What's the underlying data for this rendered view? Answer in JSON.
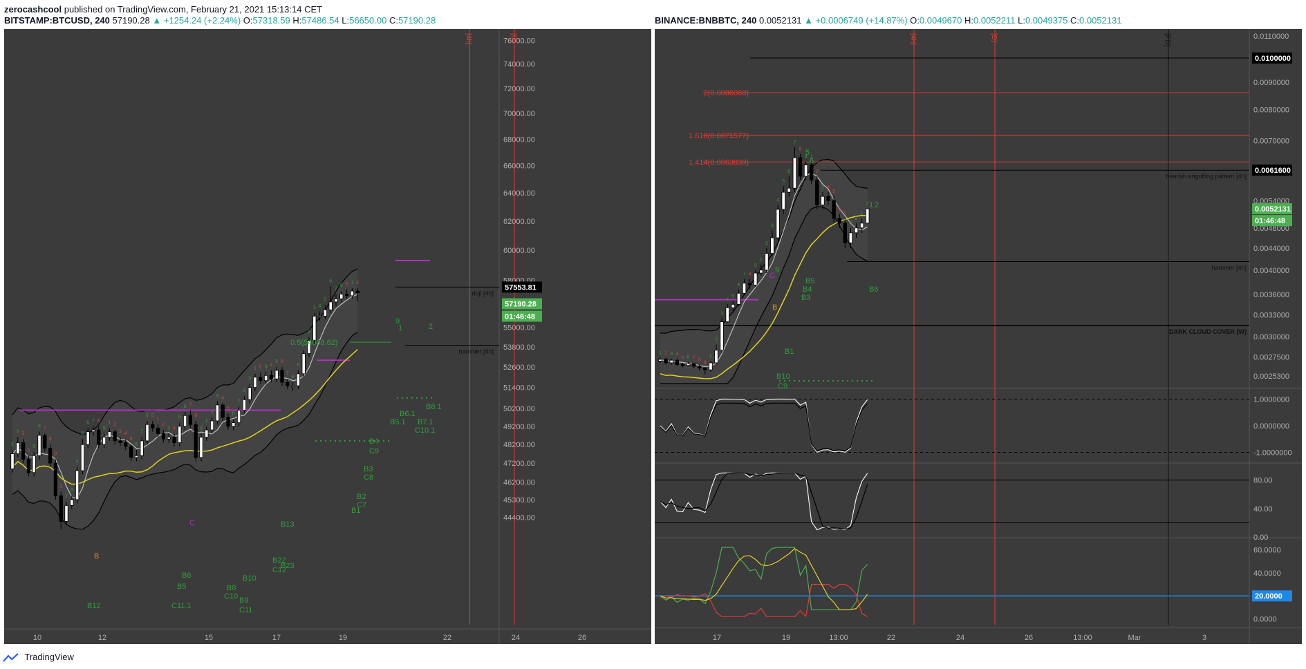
{
  "header": {
    "author": "zerocashcool",
    "published_text": "published on TradingView.com, February 21, 2021 15:13:14 CET"
  },
  "left_legend": {
    "symbol": "BITSTAMP:BTCUSD, 240",
    "last": "57190.28",
    "change": "▲ +1254.24 (+2.24%)",
    "o_label": "O:",
    "o": "57318.59",
    "h_label": "H:",
    "h": "57486.54",
    "l_label": "L:",
    "l": "56650.00",
    "c_label": "C:",
    "c": "57190.28"
  },
  "right_legend": {
    "symbol": "BINANCE:BNBBTC, 240",
    "last": "0.0052131",
    "change": "▲ +0.0006749 (+14.87%)",
    "o_label": "O:",
    "o": "0.0049670",
    "h_label": "H:",
    "h": "0.0052211",
    "l_label": "L:",
    "l": "0.0049375",
    "c_label": "C:",
    "c": "0.0052131"
  },
  "footer": {
    "brand": "TradingView"
  },
  "colors": {
    "pane_bg": "#3b3b3b",
    "up_candle": "#ffffff",
    "down_candle": "#000000",
    "bb_line": "#000000",
    "ma_fast": "#bdbdbd",
    "ma_slow": "#e3d21f",
    "td_green": "#2e9e3a",
    "td_red": "#d94040",
    "magenta": "#b030c0",
    "orange": "#e08a1e",
    "red_line": "#e03c31",
    "price_tag_green": "#4caf50",
    "adx_blue": "#1e88e5"
  },
  "chart_data": [
    {
      "type": "candlestick",
      "title": "BITSTAMP:BTCUSD, 240",
      "y_axis": [
        "76000.00",
        "74000.00",
        "72000.00",
        "70000.00",
        "68000.00",
        "66000.00",
        "64000.00",
        "62000.00",
        "60000.00",
        "58000.00",
        "55000.00",
        "53800.00",
        "52600.00",
        "51400.00",
        "50200.00",
        "49200.00",
        "48200.00",
        "47200.00",
        "46200.00",
        "45300.00",
        "44400.00"
      ],
      "x_axis": [
        "10",
        "12",
        "15",
        "17",
        "19",
        "22",
        "24",
        "26"
      ],
      "scale": "log",
      "ylim": [
        43600,
        76500
      ],
      "period_markers": [
        "[4h]",
        "[D]"
      ],
      "price_labels": {
        "level": "57553.81",
        "last": "57190.28",
        "countdown": "01:46:48"
      },
      "annotations": {
        "fib": "0.5(54088.62)",
        "doji": "doji [4h]",
        "hammer": "hammer [4h]"
      },
      "levels": {
        "doji_level": 57553.81,
        "hammer_level": 53900,
        "magenta_1": 50100,
        "magenta_2": 59300,
        "magenta_3": 53000,
        "fib_05": 54088.62
      },
      "td_labels": [
        "B",
        "C",
        "B13",
        "B10",
        "B8",
        "C10",
        "B9",
        "C11",
        "B6",
        "B5",
        "C11.1",
        "B12",
        "B4",
        "C9",
        "B3",
        "C8",
        "B2",
        "C7",
        "B1",
        "B6.1",
        "B5.1",
        "B7.1",
        "C10.1",
        "B8.1",
        "B22",
        "C12",
        "B23",
        "9",
        "1",
        "2"
      ],
      "candles": {
        "open": [
          46900,
          47700,
          48300,
          47400,
          46700,
          47600,
          48700,
          48000,
          47200,
          45500,
          44200,
          45000,
          45300,
          46800,
          48200,
          48900,
          49000,
          48200,
          48600,
          48900,
          48400,
          48300,
          48100,
          47500,
          47600,
          48400,
          49300,
          49100,
          48800,
          48500,
          48600,
          48300,
          49200,
          49800,
          49300,
          47500,
          48600,
          49000,
          49500,
          50400,
          49700,
          49200,
          49400,
          50100,
          50700,
          51400,
          52000,
          51800,
          52100,
          51900,
          52400,
          51700,
          51500,
          51500,
          52200,
          53400,
          54200,
          55700,
          55700,
          56100,
          56600,
          56800,
          57100,
          57000,
          57300
        ],
        "close": [
          47700,
          48300,
          47400,
          46700,
          47600,
          48700,
          48000,
          47200,
          45500,
          44200,
          45000,
          45300,
          46800,
          48200,
          48900,
          49000,
          48200,
          48600,
          48900,
          48400,
          48300,
          48100,
          47500,
          47600,
          48400,
          49300,
          49100,
          48800,
          48500,
          48600,
          48300,
          49200,
          49800,
          49300,
          47500,
          48600,
          49000,
          49500,
          50400,
          49700,
          49200,
          49400,
          50100,
          50700,
          51400,
          52000,
          51800,
          52100,
          51900,
          52400,
          51700,
          51500,
          51500,
          52200,
          53400,
          54200,
          55700,
          55700,
          56100,
          56600,
          56800,
          57100,
          57000,
          57300,
          57190
        ],
        "high": [
          47900,
          48600,
          48500,
          47600,
          47800,
          48900,
          48800,
          48200,
          47400,
          45700,
          45200,
          45500,
          47000,
          48500,
          49100,
          49200,
          49200,
          48800,
          49100,
          49000,
          48600,
          48500,
          48200,
          47900,
          48600,
          49500,
          49500,
          49300,
          49000,
          48800,
          48800,
          49400,
          50000,
          50100,
          49500,
          48800,
          49200,
          49700,
          50600,
          50500,
          49900,
          49600,
          50300,
          50900,
          51600,
          52200,
          52300,
          52300,
          52400,
          52600,
          52600,
          51900,
          51700,
          52400,
          53600,
          54400,
          55900,
          56000,
          56400,
          57600,
          57100,
          57300,
          57400,
          57500,
          57486
        ],
        "low": [
          46700,
          47500,
          47200,
          46500,
          46500,
          47400,
          47800,
          47000,
          45300,
          43800,
          44000,
          44800,
          45100,
          46600,
          48000,
          48700,
          48000,
          48000,
          48400,
          48200,
          48100,
          47900,
          47300,
          47300,
          47400,
          48200,
          48900,
          48600,
          48300,
          48300,
          48100,
          48100,
          49000,
          49100,
          47300,
          47300,
          48400,
          48800,
          49300,
          49500,
          49000,
          49000,
          49200,
          49900,
          50500,
          51200,
          51600,
          51600,
          51700,
          51700,
          51500,
          51300,
          51200,
          51300,
          52000,
          53200,
          54000,
          55400,
          55500,
          55900,
          56300,
          56600,
          56800,
          56800,
          56650
        ]
      }
    },
    {
      "type": "candlestick",
      "title": "BINANCE:BNBBTC, 240",
      "y_axis": [
        "0.0110000",
        "0.0100000",
        "0.0090000",
        "0.0080000",
        "0.0070000",
        "0.0061600",
        "0.0054000",
        "0.0052131",
        "0.0048000",
        "0.0044000",
        "0.0040000",
        "0.0036000",
        "0.0033000",
        "0.0030000",
        "0.0027500",
        "0.0025300"
      ],
      "x_axis": [
        "17",
        "19",
        "13:00",
        "22",
        "24",
        "26",
        "13:00",
        "Mar",
        "3"
      ],
      "scale": "log",
      "ylim": [
        0.00245,
        0.0112
      ],
      "period_markers": [
        "[4h]",
        "[D]",
        "[PD]"
      ],
      "price_labels": {
        "level_1": "0.0100000",
        "level_2": "0.0061600",
        "last": "0.0052131",
        "countdown": "01:46:48"
      },
      "annotations": {
        "fib_2": "2(0.0086068)",
        "fib_1618": "1.618(0.0071577)",
        "fib_1414": "1.414(0.0063839)",
        "engulf": "bearish engulfing pattern [4h]",
        "hammer": "hammer [4h]",
        "dcc": "DARK CLOUD COVER [W]"
      },
      "levels": {
        "fib_2": 0.0086068,
        "fib_1618": 0.0071577,
        "fib_1414": 0.0063839,
        "level_1": 0.01,
        "level_2": 0.00616,
        "hammer_level": 0.00415,
        "dcc_level": 0.00315,
        "magenta": 0.00352
      },
      "td_labels": [
        "B",
        "C",
        "B5",
        "B4",
        "B3",
        "B1",
        "B6",
        "C9",
        "B10",
        "9",
        "5",
        "6",
        "1",
        "2"
      ],
      "candles": {
        "open": [
          0.0027,
          0.00272,
          0.00268,
          0.00271,
          0.00266,
          0.00265,
          0.00267,
          0.00264,
          0.00262,
          0.0026,
          0.00268,
          0.00283,
          0.0032,
          0.0034,
          0.00345,
          0.00362,
          0.00378,
          0.00375,
          0.00395,
          0.004,
          0.0043,
          0.0046,
          0.0052,
          0.0056,
          0.0057,
          0.0065,
          0.006,
          0.0063,
          0.0059,
          0.0053,
          0.0055,
          0.0054,
          0.005,
          0.0049,
          0.0045,
          0.0047,
          0.0048,
          0.0049
        ],
        "close": [
          0.00272,
          0.00268,
          0.00271,
          0.00266,
          0.00265,
          0.00267,
          0.00264,
          0.00262,
          0.0026,
          0.00268,
          0.00283,
          0.0032,
          0.0034,
          0.00345,
          0.00362,
          0.00378,
          0.00375,
          0.00395,
          0.004,
          0.0043,
          0.0046,
          0.0052,
          0.0056,
          0.0057,
          0.0065,
          0.006,
          0.0063,
          0.0059,
          0.0053,
          0.0055,
          0.0054,
          0.005,
          0.0049,
          0.0045,
          0.0047,
          0.0048,
          0.0049,
          0.0052131
        ],
        "high": [
          0.00274,
          0.00274,
          0.00273,
          0.00273,
          0.00268,
          0.00269,
          0.00268,
          0.00266,
          0.00263,
          0.0027,
          0.0029,
          0.00325,
          0.00345,
          0.0035,
          0.00368,
          0.00385,
          0.00385,
          0.004,
          0.0041,
          0.0044,
          0.00475,
          0.0053,
          0.00575,
          0.006,
          0.0068,
          0.0066,
          0.0064,
          0.0064,
          0.006,
          0.0056,
          0.0056,
          0.0055,
          0.0051,
          0.005,
          0.0048,
          0.0049,
          0.005,
          0.0052211
        ],
        "low": [
          0.00268,
          0.00266,
          0.00266,
          0.00264,
          0.00263,
          0.00264,
          0.00262,
          0.00259,
          0.00255,
          0.00258,
          0.00266,
          0.0028,
          0.00318,
          0.00335,
          0.00342,
          0.0036,
          0.00368,
          0.00372,
          0.0039,
          0.00395,
          0.00425,
          0.00455,
          0.0051,
          0.0055,
          0.0056,
          0.0059,
          0.0059,
          0.0058,
          0.0052,
          0.0052,
          0.0053,
          0.0049,
          0.0048,
          0.0044,
          0.0044,
          0.0046,
          0.0047,
          0.0049375
        ]
      },
      "indicator_1": {
        "y_axis": [
          "1.0000000",
          "0.0000000",
          "-1.0000000"
        ],
        "ylim": [
          -1.3,
          1.3
        ]
      },
      "indicator_2": {
        "y_axis": [
          "80.00",
          "40.00",
          "0.00"
        ],
        "ylim": [
          0,
          100
        ]
      },
      "indicator_3": {
        "y_axis": [
          "60.0000",
          "40.0000",
          "20.0000",
          "0.0000"
        ],
        "ylim": [
          -5,
          68
        ],
        "value_label": "20.0000"
      }
    }
  ]
}
